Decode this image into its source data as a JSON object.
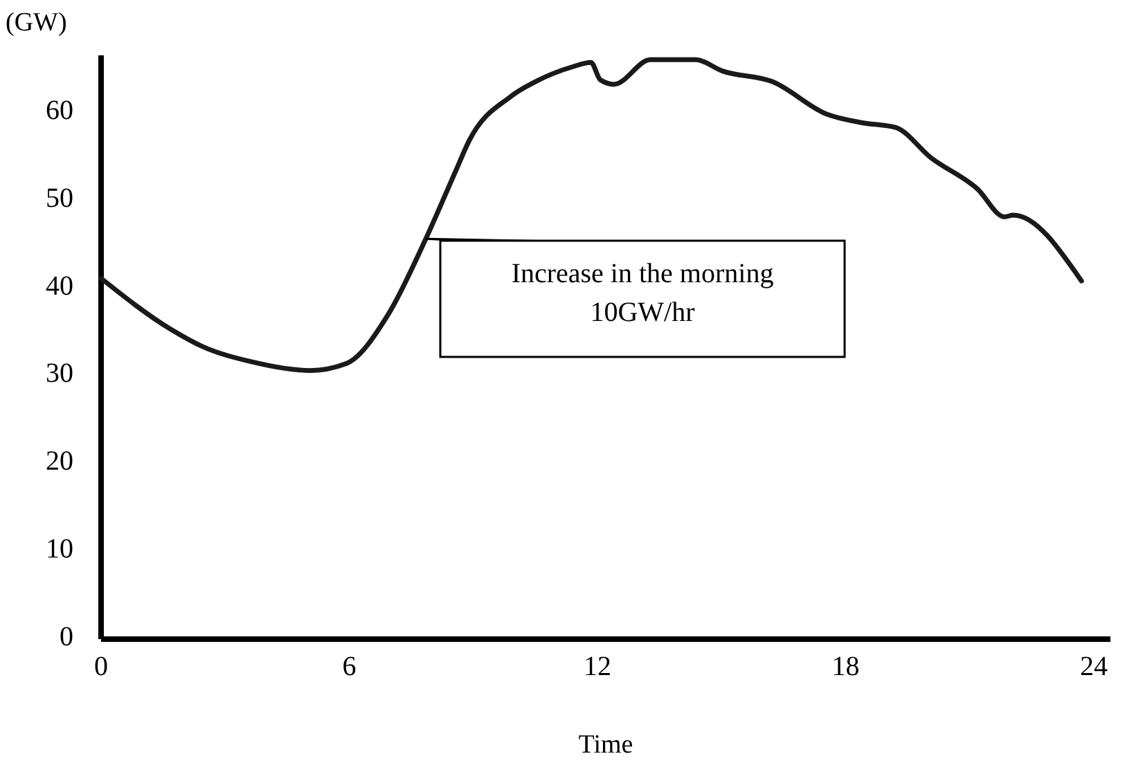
{
  "chart_data": {
    "type": "line",
    "xlabel": "Time",
    "ylabel": "(GW)",
    "x": [
      0,
      1.65,
      2.42,
      3.63,
      5.05,
      5.93,
      6.93,
      7.85,
      8.57,
      8.9,
      9.9,
      10.5,
      11.4,
      11.84,
      12.07,
      12.4,
      13.28,
      14.37,
      15.03,
      16.23,
      17.54,
      18.42,
      19.2,
      20.07,
      21.18,
      21.84,
      22.05,
      23.7
    ],
    "series": [
      {
        "color": "#1a1a1a",
        "values": [
          41.1,
          35.4,
          33.4,
          31.6,
          30.6,
          31.4,
          36.9,
          45.6,
          53.3,
          56.8,
          61.8,
          63.5,
          65.2,
          65.7,
          63.7,
          63.2,
          66,
          66,
          64.7,
          63.5,
          59.8,
          58.8,
          58.3,
          54.8,
          51.3,
          48.1,
          48.3,
          40.8
        ]
      }
    ],
    "xlim": [
      0,
      24.4
    ],
    "ylim": [
      0,
      66.5
    ],
    "xticks": [
      0,
      6,
      12,
      18,
      24
    ],
    "yticks": [
      0,
      10,
      20,
      30,
      40,
      50,
      60
    ],
    "grid": false,
    "marker": "none",
    "line_style": "solid",
    "annotations": [
      {
        "text": "Increase in the morning\n10GW/hr",
        "x": 7.85,
        "y": 45.6
      }
    ]
  }
}
